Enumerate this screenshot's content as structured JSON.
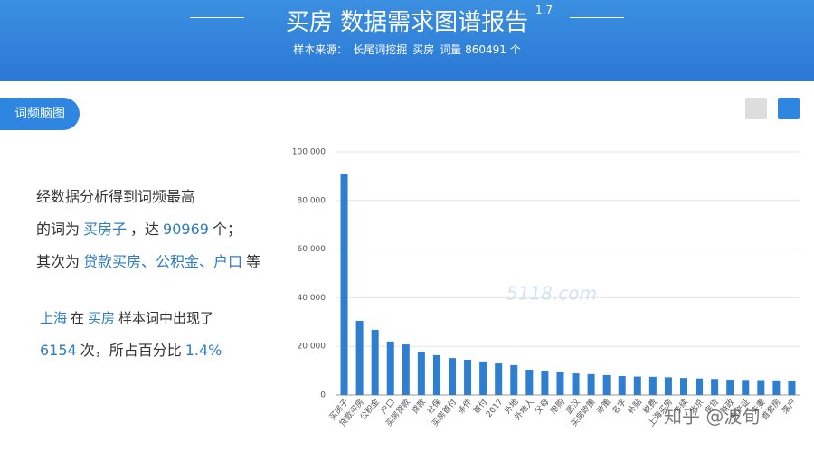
{
  "header": {
    "title": "买房 数据需求图谱报告",
    "version": "1.7",
    "source_parts": [
      "样本来源：",
      "长尾词挖掘",
      "买房",
      "词量 860491 个"
    ]
  },
  "tab": "词频脑图",
  "summary": {
    "lines": [
      [
        {
          "text": "经数据分析得到词频最高",
          "highlight": false
        }
      ],
      [
        {
          "text": "的词为",
          "highlight": false
        },
        {
          "text": "买房子",
          "highlight": true
        },
        {
          "text": "，达",
          "highlight": false
        },
        {
          "text": "90969",
          "highlight": true
        },
        {
          "text": "个；",
          "highlight": false
        }
      ],
      [
        {
          "text": "其次为",
          "highlight": false
        },
        {
          "text": "贷款买房、公积金、户口",
          "highlight": true
        },
        {
          "text": "等",
          "highlight": false
        }
      ],
      [
        {
          "text": "上海",
          "highlight": true
        },
        {
          "text": "在",
          "highlight": false
        },
        {
          "text": "买房",
          "highlight": true
        },
        {
          "text": "样本词中出现了",
          "highlight": false
        }
      ],
      [
        {
          "text": "6154",
          "highlight": true
        },
        {
          "text": "次，所占百分比",
          "highlight": false
        },
        {
          "text": "1.4%",
          "highlight": true
        }
      ]
    ]
  },
  "watermarks": [
    "5118.com",
    "知乎 @波旬"
  ],
  "chart_data": {
    "type": "bar",
    "color": "#2f7fd0",
    "grid": true,
    "categories": [
      "买房子",
      "贷款买房",
      "公积金",
      "户口",
      "买房贷款",
      "贷款",
      "社保",
      "买房首付",
      "条件",
      "首付",
      "2017",
      "外地",
      "外地人",
      "父母",
      "限购",
      "武汉",
      "买房政策",
      "政策",
      "名字",
      "补贴",
      "税费",
      "上海买房",
      "手续",
      "北京",
      "房贷",
      "新政",
      "房产证",
      "夫妻",
      "首套房",
      "落户"
    ],
    "values": [
      90969,
      30500,
      26800,
      22000,
      20800,
      17800,
      16400,
      15200,
      14500,
      13800,
      13000,
      12300,
      10400,
      10000,
      9300,
      8900,
      8600,
      8200,
      7800,
      7600,
      7500,
      7300,
      7000,
      6800,
      6600,
      6300,
      6200,
      6154,
      6000,
      5800
    ],
    "ylim": [
      0,
      100000
    ],
    "yticks": [
      0,
      {
        "value": 20000,
        "label": "20 000"
      },
      {
        "value": 40000,
        "label": "40 000"
      },
      {
        "value": 60000,
        "label": "60 000"
      },
      {
        "value": 80000,
        "label": "80 000"
      },
      {
        "value": 100000,
        "label": "100 000"
      }
    ]
  }
}
